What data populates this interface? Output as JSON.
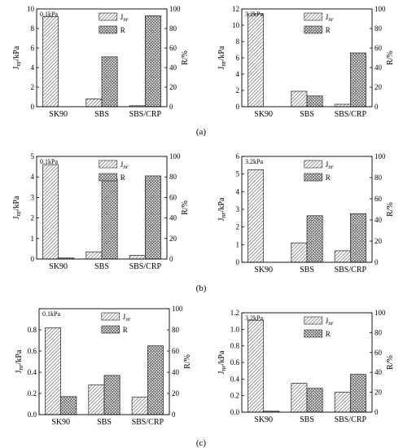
{
  "panel_labels": [
    "(a)",
    "(b)",
    "(c)"
  ],
  "legend": {
    "jnr": "J",
    "jnr_sub": "nr",
    "r": "R"
  },
  "chart_data": [
    {
      "type": "bar",
      "panel": "(a)",
      "note": "0.1kPa",
      "categories": [
        "SK90",
        "SBS",
        "SBS/CRP"
      ],
      "series": [
        {
          "name": "Jnr",
          "values": [
            9.2,
            0.8,
            0.1
          ]
        },
        {
          "name": "R",
          "values": [
            0,
            51,
            93
          ]
        }
      ],
      "ylabel": "Jnr/kPa",
      "y2label": "R/%",
      "ylim": [
        0,
        10
      ],
      "yticks": [
        0,
        2,
        4,
        6,
        8,
        10
      ],
      "y2lim": [
        0,
        100
      ],
      "y2ticks": [
        0,
        20,
        40,
        60,
        80,
        100
      ]
    },
    {
      "type": "bar",
      "panel": "(a)",
      "note": "3.2kPa",
      "categories": [
        "SK90",
        "SBS",
        "SBS/CRP"
      ],
      "series": [
        {
          "name": "Jnr",
          "values": [
            11.4,
            1.9,
            0.3
          ]
        },
        {
          "name": "R",
          "values": [
            0,
            11,
            55
          ]
        }
      ],
      "ylabel": "Jnr/kPa",
      "y2label": "R/%",
      "ylim": [
        0,
        12
      ],
      "yticks": [
        0,
        2,
        4,
        6,
        8,
        10,
        12
      ],
      "y2lim": [
        0,
        100
      ],
      "y2ticks": [
        0,
        20,
        40,
        60,
        80,
        100
      ]
    },
    {
      "type": "bar",
      "panel": "(b)",
      "note": "0.1kPa",
      "categories": [
        "SK90",
        "SBS",
        "SBS/CRP"
      ],
      "series": [
        {
          "name": "Jnr",
          "values": [
            4.6,
            0.35,
            0.18
          ]
        },
        {
          "name": "R",
          "values": [
            1,
            78,
            81
          ]
        }
      ],
      "ylabel": "Jnr/kPa",
      "y2label": "R/%",
      "ylim": [
        0,
        5
      ],
      "yticks": [
        0,
        1,
        2,
        3,
        4,
        5
      ],
      "y2lim": [
        0,
        100
      ],
      "y2ticks": [
        0,
        20,
        40,
        60,
        80,
        100
      ]
    },
    {
      "type": "bar",
      "panel": "(b)",
      "note": "3.2kPa",
      "categories": [
        "SK90",
        "SBS",
        "SBS/CRP"
      ],
      "series": [
        {
          "name": "Jnr",
          "values": [
            5.25,
            1.1,
            0.65
          ]
        },
        {
          "name": "R",
          "values": [
            0,
            44,
            46
          ]
        }
      ],
      "ylabel": "Jnr/kPa",
      "y2label": "R/%",
      "ylim": [
        0,
        6
      ],
      "yticks": [
        0,
        1,
        2,
        3,
        4,
        5,
        6
      ],
      "y2lim": [
        0,
        100
      ],
      "y2ticks": [
        0,
        20,
        40,
        60,
        80,
        100
      ]
    },
    {
      "type": "bar",
      "panel": "(c)",
      "note": "0.1kPa",
      "categories": [
        "SK90",
        "SBS",
        "SBS/CRP"
      ],
      "series": [
        {
          "name": "Jnr",
          "values": [
            0.82,
            0.28,
            0.165
          ]
        },
        {
          "name": "R",
          "values": [
            17,
            37,
            65
          ]
        }
      ],
      "ylabel": "Jnr/kPa",
      "y2label": "R/%",
      "ylim": [
        0,
        1.0
      ],
      "yticks": [
        "0.0",
        "0.2",
        "0.4",
        "0.6",
        "0.8",
        ""
      ],
      "y2lim": [
        0,
        100
      ],
      "y2ticks": [
        0,
        20,
        40,
        60,
        80,
        100
      ]
    },
    {
      "type": "bar",
      "panel": "(c)",
      "note": "3.2kPa",
      "categories": [
        "SK90",
        "SBS",
        "SBS/CRP"
      ],
      "series": [
        {
          "name": "Jnr",
          "values": [
            1.11,
            0.35,
            0.24
          ]
        },
        {
          "name": "R",
          "values": [
            1,
            24,
            38
          ]
        }
      ],
      "ylabel": "Jnr/kPa",
      "y2label": "R/%",
      "ylim": [
        0,
        1.2
      ],
      "yticks": [
        "0.0",
        "0.2",
        "0.4",
        "0.6",
        "0.8",
        "1.0",
        "1.2"
      ],
      "y2lim": [
        0,
        100
      ],
      "y2ticks": [
        0,
        20,
        40,
        60,
        80,
        100
      ]
    }
  ]
}
